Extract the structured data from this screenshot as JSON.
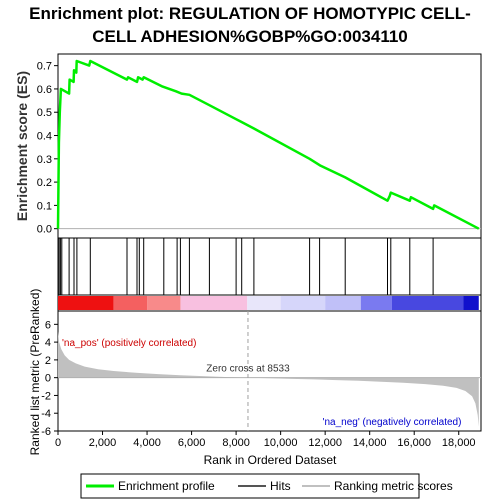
{
  "title_line1": "Enrichment plot: REGULATION OF HOMOTYPIC CELL-",
  "title_line2": "CELL ADHESION%GOBP%GO:0034110",
  "colors": {
    "es_line": "#00ee00",
    "hit": "#000000",
    "metric_fill": "#c0c0c0",
    "zero_line": "#b0b0b0",
    "pos_label": "#cc0000",
    "neg_label": "#0000cc",
    "frame": "#000000"
  },
  "chart_data": [
    {
      "name": "enrichment-score-panel",
      "type": "line",
      "ylabel": "Enrichment score (ES)",
      "xlim": [
        0,
        19000
      ],
      "ylim": [
        -0.04,
        0.75
      ],
      "yticks": [
        0.0,
        0.1,
        0.2,
        0.3,
        0.4,
        0.5,
        0.6,
        0.7
      ],
      "ytick_labels": [
        "0.0",
        "0.1",
        "0.2",
        "0.3",
        "0.4",
        "0.5",
        "0.6",
        "0.7"
      ],
      "series": [
        {
          "name": "Enrichment profile",
          "points": [
            [
              0,
              0.0
            ],
            [
              40,
              0.37
            ],
            [
              80,
              0.5
            ],
            [
              130,
              0.6
            ],
            [
              500,
              0.58
            ],
            [
              520,
              0.64
            ],
            [
              700,
              0.63
            ],
            [
              720,
              0.68
            ],
            [
              820,
              0.67
            ],
            [
              840,
              0.72
            ],
            [
              1400,
              0.7
            ],
            [
              1450,
              0.72
            ],
            [
              3100,
              0.64
            ],
            [
              3150,
              0.65
            ],
            [
              3550,
              0.63
            ],
            [
              3600,
              0.65
            ],
            [
              3800,
              0.64
            ],
            [
              3850,
              0.65
            ],
            [
              4700,
              0.61
            ],
            [
              5300,
              0.59
            ],
            [
              5550,
              0.58
            ],
            [
              5900,
              0.575
            ],
            [
              6800,
              0.53
            ],
            [
              8000,
              0.47
            ],
            [
              8200,
              0.46
            ],
            [
              8800,
              0.43
            ],
            [
              11300,
              0.3
            ],
            [
              11800,
              0.27
            ],
            [
              12900,
              0.22
            ],
            [
              14800,
              0.12
            ],
            [
              14900,
              0.14
            ],
            [
              14950,
              0.155
            ],
            [
              15800,
              0.12
            ],
            [
              15850,
              0.135
            ],
            [
              16850,
              0.085
            ],
            [
              16900,
              0.1
            ],
            [
              18900,
              0.0
            ]
          ]
        }
      ]
    },
    {
      "name": "hits-panel",
      "type": "scatter",
      "legend": "Hits",
      "x": [
        50,
        110,
        170,
        500,
        720,
        850,
        1450,
        3100,
        3550,
        3650,
        3850,
        4750,
        5350,
        5500,
        5900,
        6800,
        8000,
        8250,
        8800,
        11300,
        11750,
        12900,
        14800,
        14950,
        15800,
        16850
      ]
    },
    {
      "name": "ranking-metric-panel",
      "type": "area",
      "legend": "Ranking metric scores",
      "xlabel": "Rank in Ordered Dataset",
      "ylabel": "Ranked list metric (PreRanked)",
      "xlim": [
        0,
        19000
      ],
      "ylim": [
        -6,
        7.5
      ],
      "yticks": [
        -6,
        -4,
        -2,
        0,
        2,
        4,
        6
      ],
      "ytick_labels": [
        "-6",
        "-4",
        "-2",
        "0",
        "2",
        "4",
        "6"
      ],
      "xticks": [
        0,
        2000,
        4000,
        6000,
        8000,
        10000,
        12000,
        14000,
        16000,
        18000
      ],
      "xtick_labels": [
        "0",
        "2,000",
        "4,000",
        "6,000",
        "8,000",
        "10,000",
        "12,000",
        "14,000",
        "16,000",
        "18,000"
      ],
      "points": [
        [
          0,
          5.2
        ],
        [
          50,
          4.0
        ],
        [
          150,
          3.2
        ],
        [
          300,
          2.5
        ],
        [
          500,
          2.0
        ],
        [
          800,
          1.6
        ],
        [
          1200,
          1.25
        ],
        [
          1800,
          0.95
        ],
        [
          2500,
          0.75
        ],
        [
          3500,
          0.55
        ],
        [
          4500,
          0.4
        ],
        [
          5500,
          0.28
        ],
        [
          6500,
          0.18
        ],
        [
          7500,
          0.08
        ],
        [
          8533,
          0.0
        ],
        [
          9500,
          -0.07
        ],
        [
          10500,
          -0.14
        ],
        [
          11500,
          -0.2
        ],
        [
          12500,
          -0.27
        ],
        [
          13500,
          -0.35
        ],
        [
          14500,
          -0.45
        ],
        [
          15500,
          -0.57
        ],
        [
          16500,
          -0.72
        ],
        [
          17300,
          -0.9
        ],
        [
          17900,
          -1.15
        ],
        [
          18300,
          -1.5
        ],
        [
          18600,
          -2.1
        ],
        [
          18750,
          -2.9
        ],
        [
          18850,
          -4.2
        ],
        [
          18900,
          -5.5
        ],
        [
          18900,
          0
        ]
      ],
      "zero_cross": 8533,
      "zero_cross_label": "Zero cross at 8533",
      "pos_label": "'na_pos' (positively correlated)",
      "neg_label": "'na_neg' (negatively correlated)"
    }
  ],
  "color_bar": [
    {
      "from": 0,
      "to": 2500,
      "color": "#ee1111"
    },
    {
      "from": 2500,
      "to": 4000,
      "color": "#f46060"
    },
    {
      "from": 4000,
      "to": 5500,
      "color": "#f88a8a"
    },
    {
      "from": 5500,
      "to": 8500,
      "color": "#f8c0e0"
    },
    {
      "from": 8500,
      "to": 10000,
      "color": "#e8e6fa"
    },
    {
      "from": 10000,
      "to": 12000,
      "color": "#d6d6fa"
    },
    {
      "from": 12000,
      "to": 13600,
      "color": "#c0c0f8"
    },
    {
      "from": 13600,
      "to": 15000,
      "color": "#7a7af0"
    },
    {
      "from": 15000,
      "to": 18200,
      "color": "#4848e0"
    },
    {
      "from": 18200,
      "to": 18900,
      "color": "#1010cc"
    }
  ],
  "legend": {
    "profile": "Enrichment profile",
    "hits": "Hits",
    "metric": "Ranking metric scores"
  }
}
